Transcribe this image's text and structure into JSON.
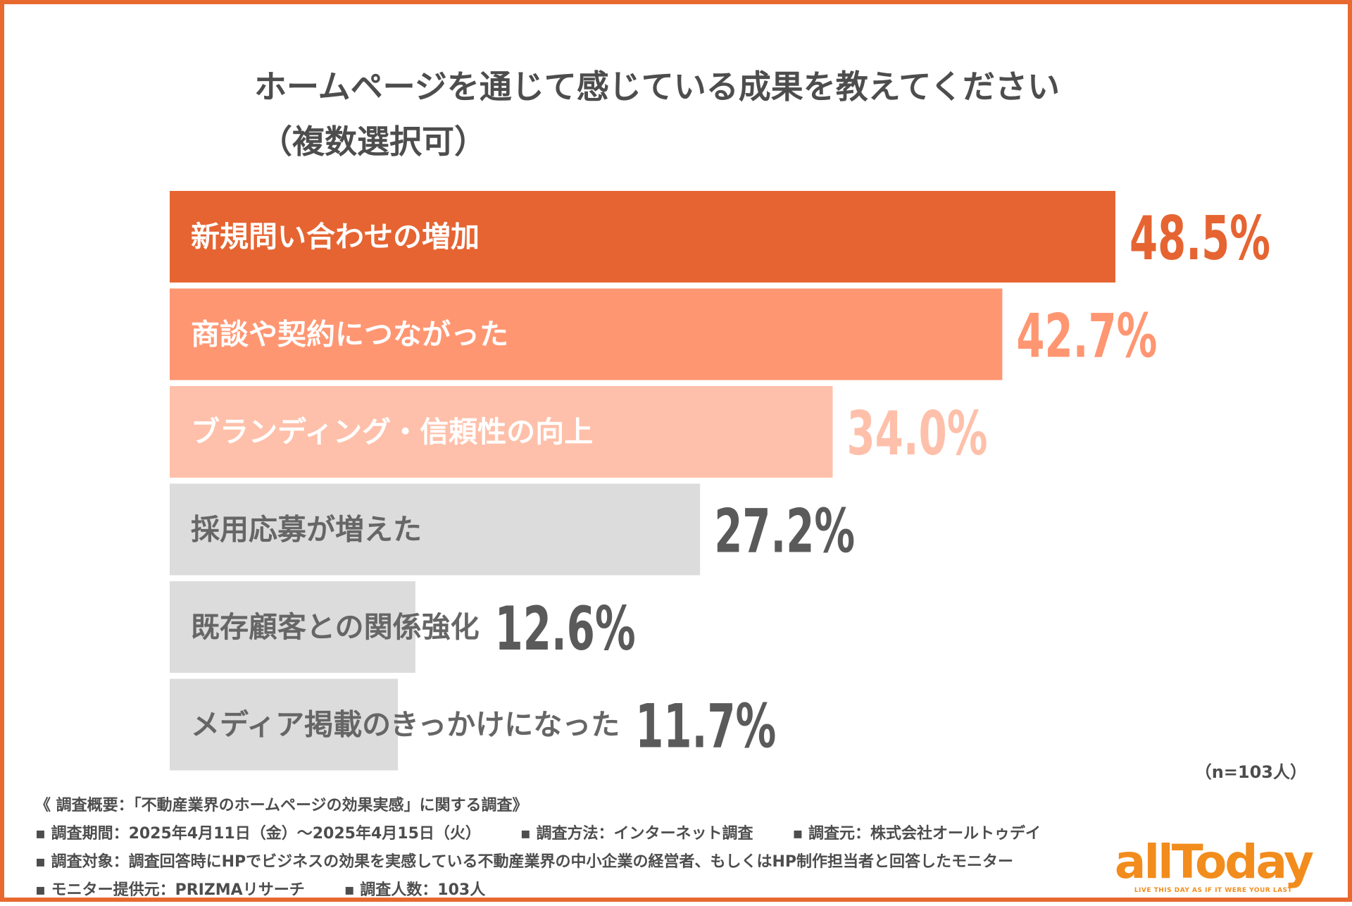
{
  "title": {
    "line1": "ホームページを通じて感じている成果を教えてください",
    "line2": "（複数選択可）"
  },
  "chart_data": {
    "type": "bar",
    "orientation": "horizontal",
    "categories": [
      "新規問い合わせの増加",
      "商談や契約につながった",
      "ブランディング・信頼性の向上",
      "採用応募が増えた",
      "既存顧客との関係強化",
      "メディア掲載のきっかけになった"
    ],
    "values": [
      48.5,
      42.7,
      34.0,
      27.2,
      12.6,
      11.7
    ],
    "value_labels": [
      "48.5%",
      "42.7%",
      "34.0%",
      "27.2%",
      "12.6%",
      "11.7%"
    ],
    "bar_colors": [
      "#e66432",
      "#ff9672",
      "#fec0aa",
      "#dcdcdc",
      "#dcdcdc",
      "#dcdcdc"
    ],
    "category_label_colors": [
      "#ffffff",
      "#ffffff",
      "#ffffff",
      "#666666",
      "#666666",
      "#666666"
    ],
    "value_label_colors": [
      "#e66432",
      "#ff9672",
      "#fec0aa",
      "#5a5a5a",
      "#5a5a5a",
      "#5a5a5a"
    ],
    "xlim": [
      0,
      48.5
    ],
    "unit": "%"
  },
  "sample_note": "（n=103人）",
  "notes": {
    "heading": "《 調査概要：「不動産業界のホームページの効果実感」に関する調査》",
    "period": "▪ 調査期間：2025年4月11日（金）〜2025年4月15日（火）",
    "method": "▪ 調査方法：インターネット調査",
    "org": "▪ 調査元：株式会社オールトゥデイ",
    "target": "▪ 調査対象：調査回答時にHPでビジネスの効果を実感している不動産業界の中小企業の経営者、もしくはHP制作担当者と回答したモニター",
    "provider": "▪ モニター提供元：PRIZMAリサーチ",
    "count": "▪ 調査人数：103人"
  },
  "logo": {
    "word": "allToday",
    "tagline": "LIVE THIS DAY AS IF IT WERE YOUR LAST",
    "color": "#f28c1c"
  },
  "colors": {
    "accent": "#e8692f",
    "text": "#4d4d4d"
  }
}
